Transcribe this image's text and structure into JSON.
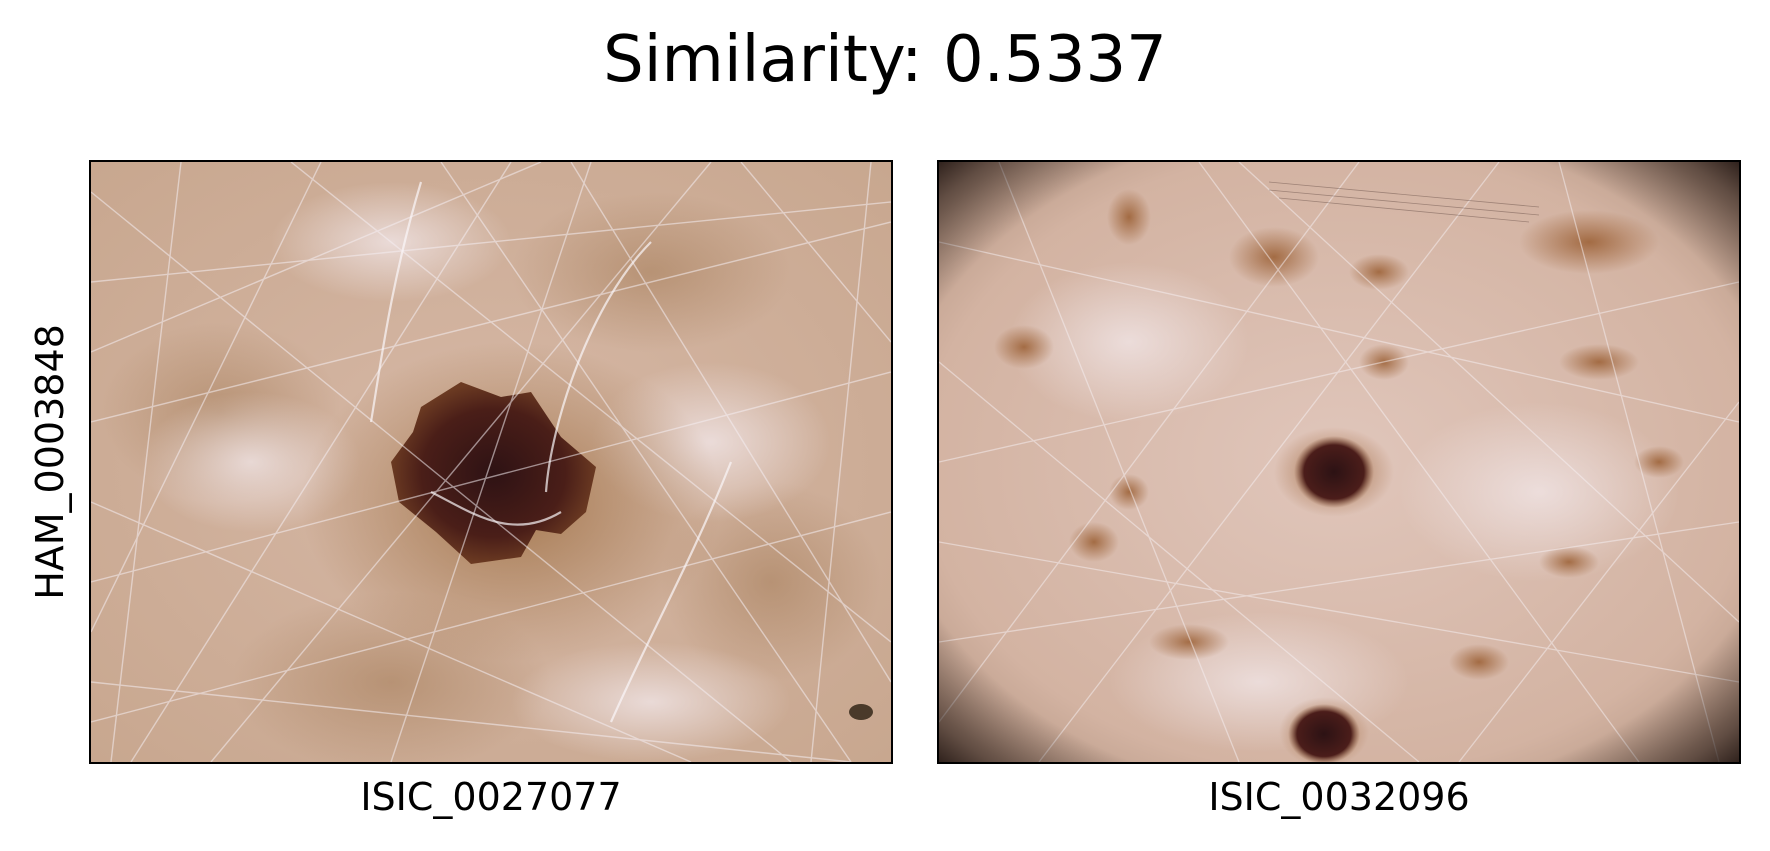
{
  "figure": {
    "title": "Similarity: 0.5337",
    "row_label": "HAM_0003848",
    "images": [
      {
        "label": "ISIC_0027077"
      },
      {
        "label": "ISIC_0032096"
      }
    ]
  },
  "colors": {
    "skin": "#c9a48a",
    "skin_light": "#ddc3b6",
    "lesion_dark": "#3a1a16",
    "pigment": "#8f5a34",
    "hair": "#f4eef2",
    "vignette": "#1a0f0c"
  }
}
